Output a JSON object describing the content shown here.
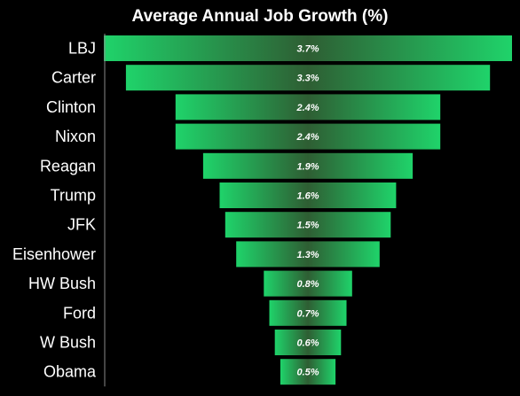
{
  "chart_data": {
    "type": "bar",
    "orientation": "horizontal-funnel",
    "title": "Average Annual Job Growth (%)",
    "categories": [
      "LBJ",
      "Carter",
      "Clinton",
      "Nixon",
      "Reagan",
      "Trump",
      "JFK",
      "Eisenhower",
      "HW Bush",
      "Ford",
      "W Bush",
      "Obama"
    ],
    "values": [
      3.7,
      3.3,
      2.4,
      2.4,
      1.9,
      1.6,
      1.5,
      1.3,
      0.8,
      0.7,
      0.6,
      0.5
    ],
    "data_labels": [
      "3.7%",
      "3.3%",
      "2.4%",
      "2.4%",
      "1.9%",
      "1.6%",
      "1.5%",
      "1.3%",
      "0.8%",
      "0.7%",
      "0.6%",
      "0.5%"
    ],
    "xlabel": "",
    "ylabel": "",
    "legend": "none",
    "grid": false,
    "colors": {
      "background": "#000000",
      "bar_edge": "#1fd36a",
      "bar_center": "#2e5e33",
      "text": "#ffffff",
      "axis": "#8a8a8a"
    }
  }
}
